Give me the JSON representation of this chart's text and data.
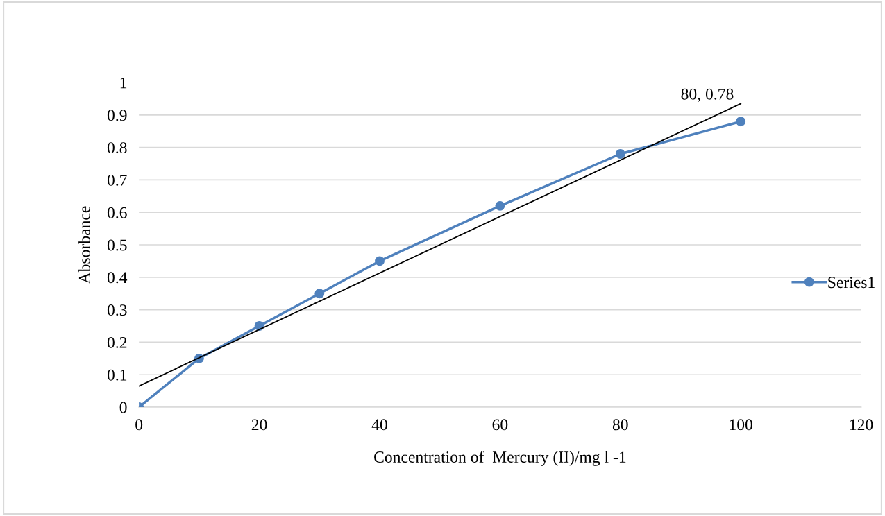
{
  "chart_data": {
    "type": "line",
    "xlabel": "Concentration of  Mercury (II)/mg l -1",
    "ylabel": "Absorbance",
    "xlim": [
      0,
      120
    ],
    "xticks": [
      0,
      20,
      40,
      60,
      80,
      100,
      120
    ],
    "ylim": [
      0,
      1
    ],
    "yticks": [
      0,
      0.1,
      0.2,
      0.3,
      0.4,
      0.5,
      0.6,
      0.7,
      0.8,
      0.9,
      1
    ],
    "grid": "y",
    "legend": "right",
    "marker": "circle",
    "line_style": "solid",
    "series": [
      {
        "name": "Series1",
        "color": "#4f81bd",
        "x": [
          0,
          10,
          20,
          30,
          40,
          60,
          80,
          100
        ],
        "values": [
          0,
          0.15,
          0.25,
          0.35,
          0.45,
          0.62,
          0.78,
          0.88
        ]
      },
      {
        "type": "line",
        "color": "#000000",
        "marker": "none",
        "x": [
          0,
          100
        ],
        "values": [
          0.065,
          0.935
        ]
      }
    ],
    "annotations": [
      "80, 0.78"
    ]
  }
}
